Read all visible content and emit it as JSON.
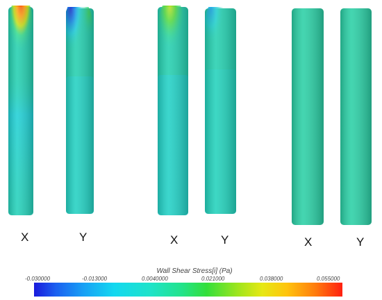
{
  "labels": {
    "x1": "X",
    "y1": "Y",
    "x2": "X",
    "y2": "Y",
    "x3": "X",
    "y3": "Y"
  },
  "colorbar": {
    "title": "Wall Shear Stress[i] (Pa)",
    "ticks": [
      "-0.030000",
      "-0.013000",
      "0.0040000",
      "0.021000",
      "0.038000",
      "0.055000"
    ],
    "min": -0.03,
    "max": 0.055
  },
  "colors": {
    "base": "#25d0b0",
    "low": "#1a1adc",
    "high": "#ff2010"
  }
}
